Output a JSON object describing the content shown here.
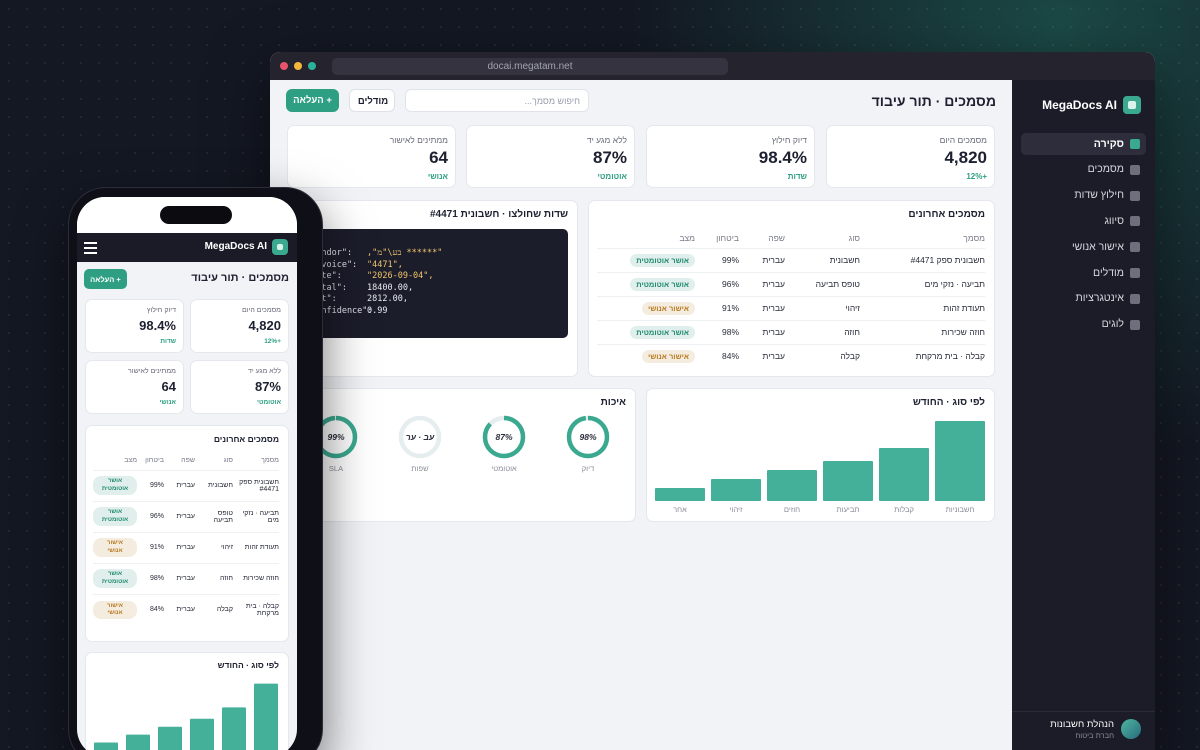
{
  "browser": {
    "url": "docai.megatam.net"
  },
  "sidebar": {
    "brand": "MegaDocs AI",
    "nav": [
      "סקירה",
      "מסמכים",
      "חילוץ שדות",
      "סיווג",
      "אישור אנושי",
      "מודלים",
      "אינטגרציות",
      "לוגים"
    ],
    "user_name": "הנהלת חשבונות",
    "user_org": "חברת ביטוח"
  },
  "header": {
    "title": "מסמכים · תור עיבוד",
    "search_placeholder": "חיפוש מסמך...",
    "models_button": "מודלים",
    "upload_button": "+ העלאה"
  },
  "kpis": [
    {
      "label": "מסמכים היום",
      "value": "4,820",
      "note": "+12%"
    },
    {
      "label": "דיוק חילוץ",
      "value": "98.4%",
      "note": "שדות"
    },
    {
      "label": "ללא מגע יד",
      "value": "87%",
      "note": "אוטומטי"
    },
    {
      "label": "ממתינים לאישור",
      "value": "64",
      "note": "אנושי"
    }
  ],
  "recent": {
    "title": "מסמכים אחרונים",
    "columns": [
      "מסמך",
      "סוג",
      "שפה",
      "ביטחון",
      "מצב"
    ],
    "rows": [
      {
        "doc": "חשבונית ספק #4471",
        "type": "חשבונית",
        "lang": "עברית",
        "confidence": "99%",
        "status": "אושר אוטומטית",
        "status_color": "#1f8a6e"
      },
      {
        "doc": "תביעה · נזקי מים",
        "type": "טופס תביעה",
        "lang": "עברית",
        "confidence": "96%",
        "status": "אושר אוטומטית",
        "status_color": "#1f8a6e"
      },
      {
        "doc": "תעודת זהות",
        "type": "זיהוי",
        "lang": "עברית",
        "confidence": "91%",
        "status": "אישור אנושי",
        "status_color": "#b7791f"
      },
      {
        "doc": "חוזה שכירות",
        "type": "חוזה",
        "lang": "עברית",
        "confidence": "98%",
        "status": "אושר אוטומטית",
        "status_color": "#1f8a6e"
      },
      {
        "doc": "קבלה · בית מרקחת",
        "type": "קבלה",
        "lang": "עברית",
        "confidence": "84%",
        "status": "אישור אנושי",
        "status_color": "#b7791f"
      }
    ]
  },
  "extracted": {
    "title": "שדות שחולצו · חשבונית #4471",
    "lines": [
      {
        "key": "\"vendor\":",
        "value": "\"****** בע\\\"מ\",",
        "color": "#f2c46d"
      },
      {
        "key": "\"invoice\":",
        "value": "\"4471\",",
        "color": "#f2c46d"
      },
      {
        "key": "\"date\":",
        "value": "\"2026-09-04\",",
        "color": "#f2c46d"
      },
      {
        "key": "\"total\":",
        "value": "18400.00,",
        "color": "#e8eaf0"
      },
      {
        "key": "\"vat\":",
        "value": "2812.00,",
        "color": "#e8eaf0"
      },
      {
        "key": "\"confidence\":",
        "value": "0.99",
        "color": "#e8eaf0"
      }
    ]
  },
  "chart_data": [
    {
      "type": "bar",
      "title": "לפי סוג · החודש",
      "categories": [
        "חשבוניות",
        "קבלות",
        "תביעות",
        "חוזים",
        "זיהוי",
        "אחר"
      ],
      "values": [
        80,
        53,
        40,
        31,
        22,
        13
      ],
      "color": "#45b09a"
    },
    {
      "type": "gauge",
      "title": "איכות",
      "categories": [
        "דיוק",
        "אוטומטי",
        "שפות",
        "SLA"
      ],
      "values": [
        98,
        87,
        null,
        99
      ],
      "value_labels": [
        "98%",
        "87%",
        "עב · ער",
        "99%"
      ],
      "color": "#3aa98f"
    }
  ]
}
